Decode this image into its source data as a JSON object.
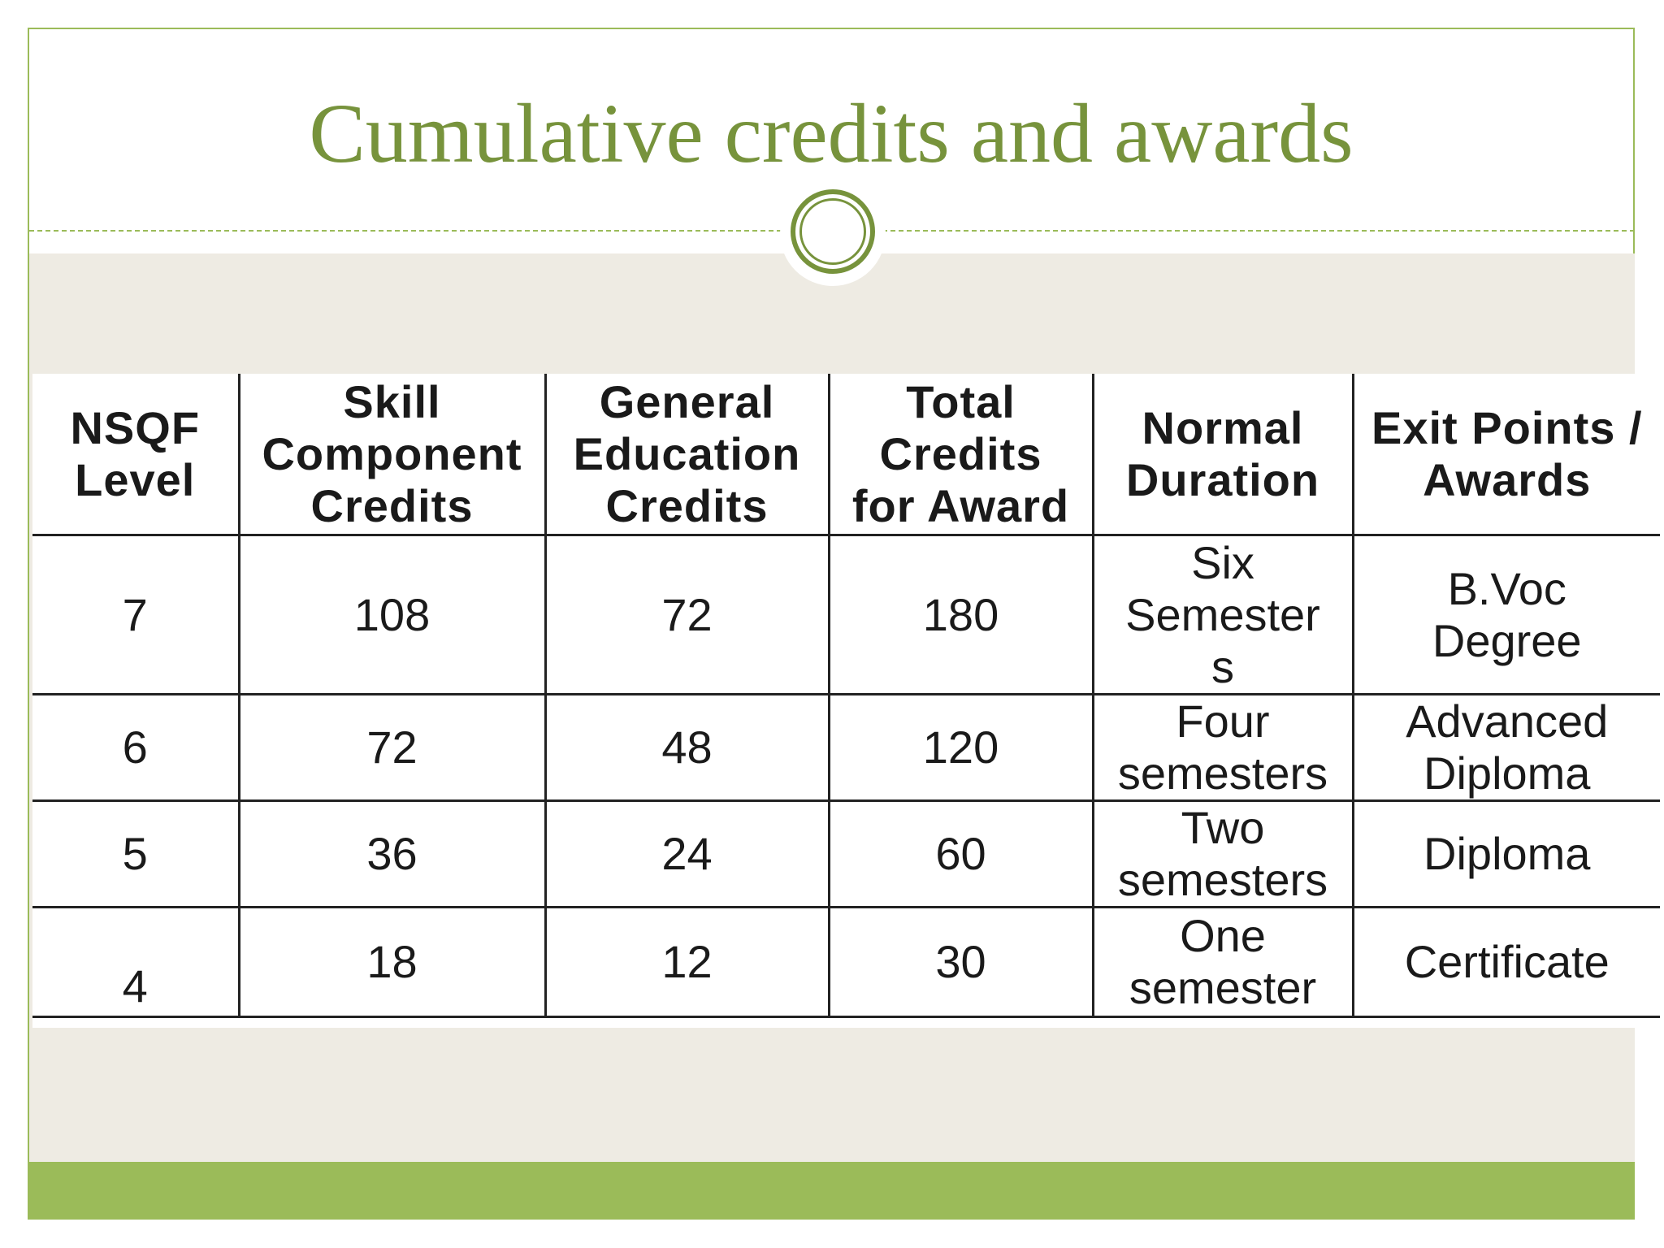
{
  "slide": {
    "title": "Cumulative credits and awards",
    "accent_color": "#9bbb59",
    "title_color": "#77933c"
  },
  "table": {
    "headers": [
      "NSQF\nLevel",
      "Skill\nComponent\nCredits",
      "General\nEducation\nCredits",
      "Total\nCredits\nfor Award",
      "Normal\nDuration",
      "Exit Points /\nAwards"
    ],
    "rows": [
      [
        "7",
        "108",
        "72",
        "180",
        "Six\nSemester\ns",
        "B.Voc\nDegree"
      ],
      [
        "6",
        "72",
        "48",
        "120",
        "Four\nsemesters",
        "Advanced\nDiploma"
      ],
      [
        "5",
        "36",
        "24",
        "60",
        "Two\nsemesters",
        "Diploma"
      ],
      [
        "4",
        "18",
        "12",
        "30",
        "One\nsemester",
        "Certificate"
      ]
    ]
  }
}
